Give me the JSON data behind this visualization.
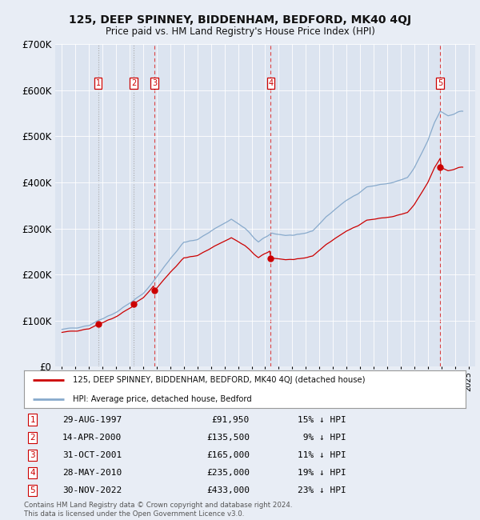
{
  "title": "125, DEEP SPINNEY, BIDDENHAM, BEDFORD, MK40 4QJ",
  "subtitle": "Price paid vs. HM Land Registry's House Price Index (HPI)",
  "bg_color": "#e8edf5",
  "plot_bg_color": "#dce4f0",
  "grid_color": "#ffffff",
  "red_line_color": "#cc0000",
  "blue_line_color": "#88aacc",
  "sale_marker_color": "#cc0000",
  "ylim": [
    0,
    700000
  ],
  "yticks": [
    0,
    100000,
    200000,
    300000,
    400000,
    500000,
    600000,
    700000
  ],
  "ytick_labels": [
    "£0",
    "£100K",
    "£200K",
    "£300K",
    "£400K",
    "£500K",
    "£600K",
    "£700K"
  ],
  "xlim_start": 1994.5,
  "xlim_end": 2025.5,
  "sales": [
    {
      "num": 1,
      "date": "29-AUG-1997",
      "price": 91950,
      "pct": "15%",
      "year": 1997.66,
      "dash_color": "#aaaaaa",
      "dash_style": "dotted"
    },
    {
      "num": 2,
      "date": "14-APR-2000",
      "price": 135500,
      "pct": "9%",
      "year": 2000.29,
      "dash_color": "#aaaaaa",
      "dash_style": "dotted"
    },
    {
      "num": 3,
      "date": "31-OCT-2001",
      "price": 165000,
      "pct": "11%",
      "year": 2001.83,
      "dash_color": "#dd4444",
      "dash_style": "dashed"
    },
    {
      "num": 4,
      "date": "28-MAY-2010",
      "price": 235000,
      "pct": "19%",
      "year": 2010.41,
      "dash_color": "#dd4444",
      "dash_style": "dashed"
    },
    {
      "num": 5,
      "date": "30-NOV-2022",
      "price": 433000,
      "pct": "23%",
      "year": 2022.92,
      "dash_color": "#dd4444",
      "dash_style": "dashed"
    }
  ],
  "legend_label_red": "125, DEEP SPINNEY, BIDDENHAM, BEDFORD, MK40 4QJ (detached house)",
  "legend_label_blue": "HPI: Average price, detached house, Bedford",
  "footer": "Contains HM Land Registry data © Crown copyright and database right 2024.\nThis data is licensed under the Open Government Licence v3.0.",
  "table_rows": [
    [
      1,
      "29-AUG-1997",
      "£91,950",
      "15% ↓ HPI"
    ],
    [
      2,
      "14-APR-2000",
      "£135,500",
      " 9% ↓ HPI"
    ],
    [
      3,
      "31-OCT-2001",
      "£165,000",
      "11% ↓ HPI"
    ],
    [
      4,
      "28-MAY-2010",
      "£235,000",
      "19% ↓ HPI"
    ],
    [
      5,
      "30-NOV-2022",
      "£433,000",
      "23% ↓ HPI"
    ]
  ]
}
